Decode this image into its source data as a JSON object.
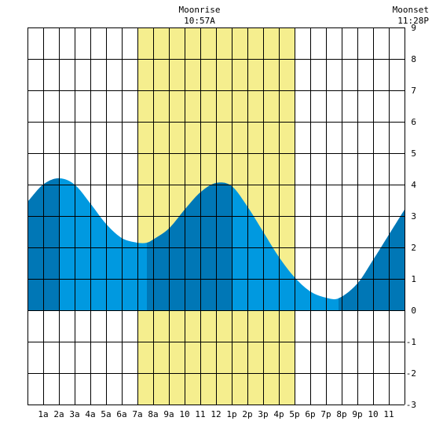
{
  "chart_data": {
    "type": "area",
    "title": "",
    "xlabel": "",
    "ylabel": "",
    "xlim": [
      0,
      24
    ],
    "ylim": [
      -3,
      9
    ],
    "x_ticks": [
      1,
      2,
      3,
      4,
      5,
      6,
      7,
      8,
      9,
      10,
      11,
      12,
      13,
      14,
      15,
      16,
      17,
      18,
      19,
      20,
      21,
      22,
      23
    ],
    "x_tick_labels": [
      "1a",
      "2a",
      "3a",
      "4a",
      "5a",
      "6a",
      "7a",
      "8a",
      "9a",
      "10",
      "11",
      "12",
      "1p",
      "2p",
      "3p",
      "4p",
      "5p",
      "6p",
      "7p",
      "8p",
      "9p",
      "10",
      "11"
    ],
    "y_ticks": [
      -3,
      -2,
      -1,
      0,
      1,
      2,
      3,
      4,
      5,
      6,
      7,
      8,
      9
    ],
    "y_tick_labels": [
      "-3",
      "-2",
      "-1",
      "0",
      "1",
      "2",
      "3",
      "4",
      "5",
      "6",
      "7",
      "8",
      "9"
    ],
    "grid": true,
    "daylight": {
      "start": 7,
      "end": 17,
      "color": "#f5ee8e"
    },
    "colors": {
      "tide_light": "#0099e0",
      "tide_dark": "#0077b6",
      "grid": "#000000"
    },
    "dark_bands": [
      [
        0,
        2
      ],
      [
        7.6,
        13
      ],
      [
        19.8,
        24
      ]
    ],
    "series": [
      {
        "x": [
          0,
          1,
          2,
          3,
          4,
          5,
          6,
          7,
          7.6,
          8,
          9,
          10,
          11,
          12,
          13,
          14,
          15,
          16,
          17,
          18,
          19,
          19.8,
          21,
          22,
          23,
          24
        ],
        "values": [
          3.45,
          4.0,
          4.2,
          4.0,
          3.4,
          2.75,
          2.3,
          2.15,
          2.15,
          2.25,
          2.6,
          3.2,
          3.75,
          4.05,
          3.95,
          3.3,
          2.5,
          1.7,
          1.05,
          0.6,
          0.4,
          0.38,
          0.85,
          1.6,
          2.4,
          3.2
        ]
      }
    ],
    "annotations": [
      {
        "label": "Moonrise",
        "time": "10:57A",
        "x": 10.95
      },
      {
        "label": "Moonset",
        "time": "11:28P",
        "x": 23.47
      }
    ]
  }
}
